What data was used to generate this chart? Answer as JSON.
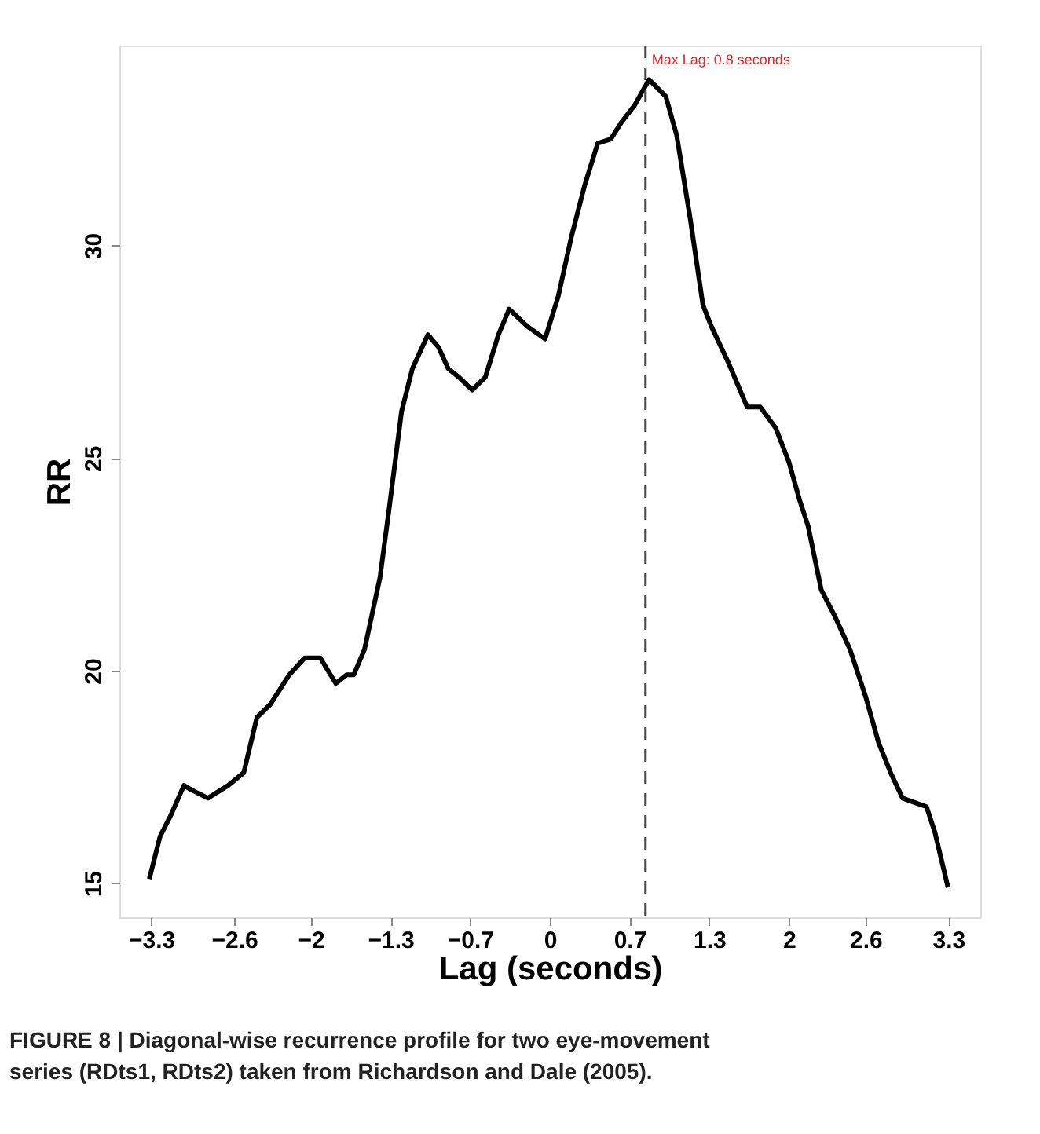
{
  "chart_data": {
    "type": "line",
    "xlabel": "Lag (seconds)",
    "ylabel": "RR",
    "x": [
      -3.35,
      -3.26,
      -3.17,
      -3.06,
      -3.0,
      -2.86,
      -2.69,
      -2.56,
      -2.45,
      -2.34,
      -2.18,
      -2.05,
      -1.92,
      -1.79,
      -1.7,
      -1.64,
      -1.55,
      -1.42,
      -1.34,
      -1.24,
      -1.15,
      -1.02,
      -0.93,
      -0.85,
      -0.76,
      -0.65,
      -0.54,
      -0.43,
      -0.34,
      -0.19,
      -0.04,
      0.07,
      0.18,
      0.29,
      0.4,
      0.51,
      0.6,
      0.71,
      0.83,
      0.97,
      1.06,
      1.17,
      1.28,
      1.35,
      1.5,
      1.65,
      1.76,
      1.89,
      2.0,
      2.09,
      2.16,
      2.27,
      2.38,
      2.51,
      2.64,
      2.75,
      2.85,
      2.95,
      3.05,
      3.15,
      3.22,
      3.33
    ],
    "series": [
      {
        "color": "#000000",
        "values": [
          15.1,
          16.1,
          16.6,
          17.3,
          17.2,
          17.0,
          17.3,
          17.6,
          18.9,
          19.2,
          19.9,
          20.3,
          20.3,
          19.7,
          19.9,
          19.9,
          20.5,
          22.2,
          23.9,
          26.1,
          27.1,
          27.9,
          27.6,
          27.1,
          26.9,
          26.6,
          26.9,
          27.9,
          28.5,
          28.1,
          27.8,
          28.8,
          30.2,
          31.4,
          32.4,
          32.5,
          32.9,
          33.3,
          33.9,
          33.5,
          32.6,
          30.7,
          28.6,
          28.1,
          27.2,
          26.2,
          26.2,
          25.7,
          24.9,
          24.0,
          23.4,
          21.9,
          21.3,
          20.5,
          19.4,
          18.3,
          17.6,
          17.0,
          16.9,
          16.8,
          16.2,
          14.9
        ]
      }
    ],
    "xlim": [
      -3.6,
      3.6
    ],
    "xticks": [
      {
        "value": -3.333,
        "label": "−3.3"
      },
      {
        "value": -2.64,
        "label": "−2.6"
      },
      {
        "value": -2,
        "label": "−2"
      },
      {
        "value": -1.333,
        "label": "−1.3"
      },
      {
        "value": -0.667,
        "label": "−0.7"
      },
      0,
      {
        "value": 0.667,
        "label": "0.7"
      },
      {
        "value": 1.333,
        "label": "1.3"
      },
      2,
      {
        "value": 2.64,
        "label": "2.6"
      },
      {
        "value": 3.333,
        "label": "3.3"
      }
    ],
    "ylim": [
      14.2,
      34.7
    ],
    "yticks": [
      15,
      20,
      25,
      30
    ],
    "ref_lines": [
      {
        "axis": "x",
        "value": 0.8,
        "label": "Max Lag: 0.8 seconds",
        "color": "#444444",
        "line_style": "dashed"
      }
    ],
    "grid": false,
    "line_style": "solid",
    "marker": "none",
    "annotations": [
      "FIGURE 8 | Diagonal-wise recurrence profile for two eye-movement series (RDts1, RDts2) taken from Richardson and Dale (2005)."
    ]
  }
}
